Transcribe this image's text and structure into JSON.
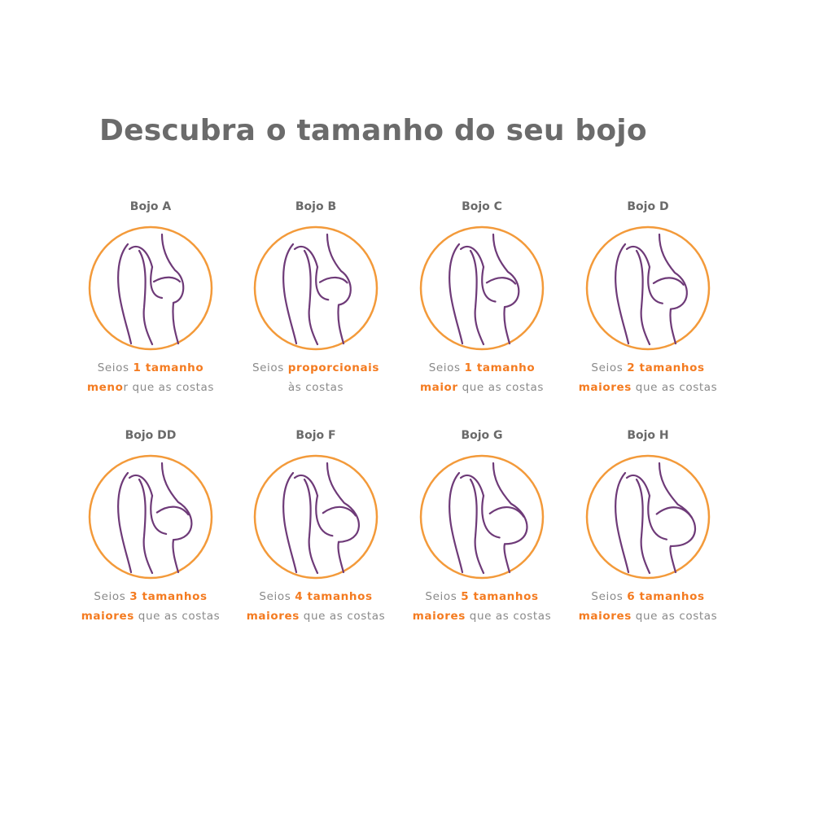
{
  "title": "Descubra o tamanho do seu bojo",
  "colors": {
    "accent": "#f47b20",
    "circle": "#f39a3a",
    "figure": "#6e3a78",
    "text": "#8a8a8a",
    "title": "#6b6b6b"
  },
  "cups": [
    {
      "label": "Bojo A",
      "line1": [
        {
          "t": "Seios ",
          "hl": false
        },
        {
          "t": "1 tamanho",
          "hl": true
        }
      ],
      "line2": [
        {
          "t": "meno",
          "hl": true
        },
        {
          "t": "r que as costas",
          "hl": false
        }
      ]
    },
    {
      "label": "Bojo B",
      "line1": [
        {
          "t": "Seios ",
          "hl": false
        },
        {
          "t": "proporcionais",
          "hl": true
        }
      ],
      "line2": [
        {
          "t": "às costas",
          "hl": false
        }
      ]
    },
    {
      "label": "Bojo C",
      "line1": [
        {
          "t": "Seios ",
          "hl": false
        },
        {
          "t": "1 tamanho",
          "hl": true
        }
      ],
      "line2": [
        {
          "t": "maior",
          "hl": true
        },
        {
          "t": " que as costas",
          "hl": false
        }
      ]
    },
    {
      "label": "Bojo D",
      "line1": [
        {
          "t": "Seios ",
          "hl": false
        },
        {
          "t": "2 tamanhos",
          "hl": true
        }
      ],
      "line2": [
        {
          "t": "maiores",
          "hl": true
        },
        {
          "t": " que as costas",
          "hl": false
        }
      ]
    },
    {
      "label": "Bojo DD",
      "line1": [
        {
          "t": "Seios ",
          "hl": false
        },
        {
          "t": "3 tamanhos",
          "hl": true
        }
      ],
      "line2": [
        {
          "t": "maiores",
          "hl": true
        },
        {
          "t": " que as costas",
          "hl": false
        }
      ]
    },
    {
      "label": "Bojo F",
      "line1": [
        {
          "t": "Seios ",
          "hl": false
        },
        {
          "t": "4 tamanhos",
          "hl": true
        }
      ],
      "line2": [
        {
          "t": "maiores",
          "hl": true
        },
        {
          "t": " que as costas",
          "hl": false
        }
      ]
    },
    {
      "label": "Bojo G",
      "line1": [
        {
          "t": "Seios ",
          "hl": false
        },
        {
          "t": "5 tamanhos",
          "hl": true
        }
      ],
      "line2": [
        {
          "t": "maiores",
          "hl": true
        },
        {
          "t": " que as costas",
          "hl": false
        }
      ]
    },
    {
      "label": "Bojo H",
      "line1": [
        {
          "t": "Seios ",
          "hl": false
        },
        {
          "t": "6 tamanhos",
          "hl": true
        }
      ],
      "line2": [
        {
          "t": "maiores",
          "hl": true
        },
        {
          "t": " que as costas",
          "hl": false
        }
      ]
    }
  ]
}
